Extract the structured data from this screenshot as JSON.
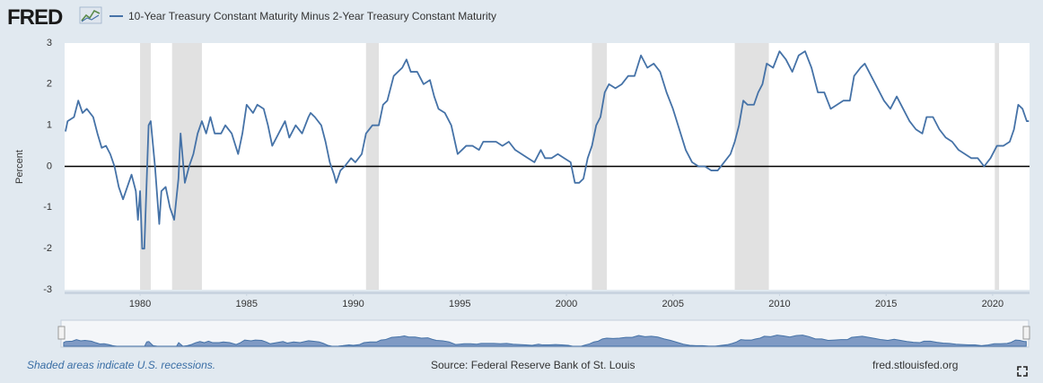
{
  "header": {
    "logo": "FRED"
  },
  "chart_data": {
    "type": "line",
    "y_label": "Percent",
    "x": [
      1976.5,
      1976.6,
      1976.9,
      1977.1,
      1977.3,
      1977.5,
      1977.8,
      1978.0,
      1978.2,
      1978.4,
      1978.6,
      1978.8,
      1979.0,
      1979.2,
      1979.4,
      1979.6,
      1979.8,
      1979.9,
      1980.0,
      1980.1,
      1980.2,
      1980.3,
      1980.4,
      1980.5,
      1980.7,
      1980.9,
      1981.0,
      1981.2,
      1981.4,
      1981.6,
      1981.8,
      1981.9,
      1982.1,
      1982.3,
      1982.5,
      1982.7,
      1982.9,
      1983.1,
      1983.3,
      1983.5,
      1983.8,
      1984.0,
      1984.3,
      1984.6,
      1984.8,
      1985.0,
      1985.3,
      1985.5,
      1985.8,
      1986.0,
      1986.2,
      1986.5,
      1986.8,
      1987.0,
      1987.3,
      1987.6,
      1987.9,
      1988.0,
      1988.2,
      1988.5,
      1988.7,
      1988.9,
      1989.1,
      1989.2,
      1989.4,
      1989.6,
      1989.9,
      1990.1,
      1990.4,
      1990.6,
      1990.9,
      1991.2,
      1991.4,
      1991.6,
      1991.9,
      1992.1,
      1992.3,
      1992.5,
      1992.7,
      1993.0,
      1993.3,
      1993.6,
      1993.8,
      1994.0,
      1994.3,
      1994.6,
      1994.9,
      1995.1,
      1995.3,
      1995.6,
      1995.9,
      1996.1,
      1996.4,
      1996.7,
      1997.0,
      1997.3,
      1997.6,
      1997.9,
      1998.2,
      1998.5,
      1998.8,
      1999.0,
      1999.3,
      1999.6,
      1999.9,
      2000.2,
      2000.4,
      2000.6,
      2000.8,
      2001.0,
      2001.2,
      2001.4,
      2001.6,
      2001.8,
      2002.0,
      2002.3,
      2002.6,
      2002.9,
      2003.2,
      2003.5,
      2003.8,
      2004.1,
      2004.4,
      2004.7,
      2005.0,
      2005.3,
      2005.6,
      2005.9,
      2006.2,
      2006.5,
      2006.8,
      2007.1,
      2007.4,
      2007.7,
      2007.9,
      2008.1,
      2008.3,
      2008.5,
      2008.8,
      2009.0,
      2009.2,
      2009.4,
      2009.7,
      2010.0,
      2010.3,
      2010.6,
      2010.9,
      2011.2,
      2011.5,
      2011.8,
      2012.1,
      2012.4,
      2012.7,
      2013.0,
      2013.3,
      2013.5,
      2013.8,
      2014.0,
      2014.3,
      2014.6,
      2014.9,
      2015.2,
      2015.5,
      2015.8,
      2016.1,
      2016.4,
      2016.7,
      2016.9,
      2017.2,
      2017.5,
      2017.8,
      2018.1,
      2018.4,
      2018.7,
      2019.0,
      2019.3,
      2019.6,
      2019.9,
      2020.2,
      2020.5,
      2020.8,
      2021.0,
      2021.2,
      2021.4,
      2021.6,
      2021.7
    ],
    "series": [
      {
        "name": "10-Year Treasury Constant Maturity Minus 2-Year Treasury Constant Maturity",
        "color": "#4572a7",
        "values": [
          0.85,
          1.1,
          1.2,
          1.6,
          1.3,
          1.4,
          1.2,
          0.8,
          0.45,
          0.5,
          0.3,
          0.0,
          -0.5,
          -0.8,
          -0.5,
          -0.2,
          -0.6,
          -1.3,
          -0.6,
          -2.0,
          -2.0,
          -0.5,
          1.0,
          1.1,
          0.0,
          -1.4,
          -0.6,
          -0.5,
          -1.0,
          -1.3,
          -0.3,
          0.8,
          -0.4,
          0.0,
          0.3,
          0.8,
          1.1,
          0.8,
          1.2,
          0.8,
          0.8,
          1.0,
          0.8,
          0.3,
          0.8,
          1.5,
          1.3,
          1.5,
          1.4,
          1.0,
          0.5,
          0.8,
          1.1,
          0.7,
          1.0,
          0.8,
          1.2,
          1.3,
          1.2,
          1.0,
          0.6,
          0.1,
          -0.2,
          -0.4,
          -0.1,
          0.0,
          0.2,
          0.1,
          0.3,
          0.8,
          1.0,
          1.0,
          1.5,
          1.6,
          2.2,
          2.3,
          2.4,
          2.6,
          2.3,
          2.3,
          2.0,
          2.1,
          1.7,
          1.4,
          1.3,
          1.0,
          0.3,
          0.4,
          0.5,
          0.5,
          0.4,
          0.6,
          0.6,
          0.6,
          0.5,
          0.6,
          0.4,
          0.3,
          0.2,
          0.1,
          0.4,
          0.2,
          0.2,
          0.3,
          0.2,
          0.1,
          -0.4,
          -0.4,
          -0.3,
          0.2,
          0.5,
          1.0,
          1.2,
          1.8,
          2.0,
          1.9,
          2.0,
          2.2,
          2.2,
          2.7,
          2.4,
          2.5,
          2.3,
          1.8,
          1.4,
          0.9,
          0.4,
          0.1,
          0.0,
          0.0,
          -0.1,
          -0.1,
          0.1,
          0.3,
          0.6,
          1.0,
          1.6,
          1.5,
          1.5,
          1.8,
          2.0,
          2.5,
          2.4,
          2.8,
          2.6,
          2.3,
          2.7,
          2.8,
          2.4,
          1.8,
          1.8,
          1.4,
          1.5,
          1.6,
          1.6,
          2.2,
          2.4,
          2.5,
          2.2,
          1.9,
          1.6,
          1.4,
          1.7,
          1.4,
          1.1,
          0.9,
          0.8,
          1.2,
          1.2,
          0.9,
          0.7,
          0.6,
          0.4,
          0.3,
          0.2,
          0.2,
          0.0,
          0.2,
          0.5,
          0.5,
          0.6,
          0.9,
          1.5,
          1.4,
          1.1,
          1.1
        ]
      }
    ],
    "shaded_ranges": [
      [
        1980.0,
        1980.5
      ],
      [
        1981.5,
        1982.9
      ],
      [
        1990.6,
        1991.2
      ],
      [
        2001.2,
        2001.9
      ],
      [
        2007.9,
        2009.5
      ],
      [
        2020.1,
        2020.3
      ]
    ],
    "xlim": [
      1976.46,
      2021.73
    ],
    "xticks": [
      1980,
      1985,
      1990,
      1995,
      2000,
      2005,
      2010,
      2015,
      2020
    ],
    "ylim": [
      -3,
      3
    ],
    "yticks": [
      -3,
      -2,
      -1,
      0,
      1,
      2,
      3
    ]
  },
  "footer": {
    "note": "Shaded areas indicate U.S. recessions.",
    "source": "Source: Federal Reserve Bank of St. Louis",
    "site": "fred.stlouisfed.org"
  }
}
